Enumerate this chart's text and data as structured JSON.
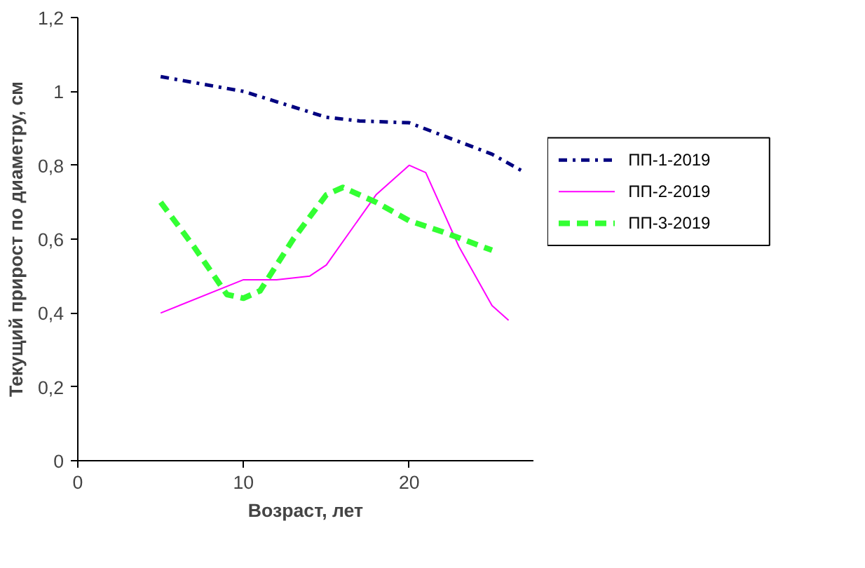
{
  "chart_data": {
    "type": "line",
    "xlabel": "Возраст, лет",
    "ylabel": "Текущий прирост по диаметру, см",
    "xlim": [
      0,
      27.5
    ],
    "xticks": [
      0,
      10,
      20
    ],
    "ylim": [
      0,
      1.2
    ],
    "yticks": [
      0,
      {
        "value": 0.2,
        "label": "0,2"
      },
      {
        "value": 0.4,
        "label": "0,4"
      },
      {
        "value": 0.6,
        "label": "0,6"
      },
      {
        "value": 0.8,
        "label": "0,8"
      },
      1,
      {
        "value": 1.2,
        "label": "1,2"
      }
    ],
    "grid": false,
    "legend": "right",
    "marker": "none",
    "series": [
      {
        "name": "ПП-1-2019",
        "color": "#000080",
        "line_style": "dashdot",
        "x": [
          5,
          10,
          15,
          17,
          20,
          25,
          27
        ],
        "values": [
          1.04,
          1.0,
          0.93,
          0.92,
          0.915,
          0.83,
          0.78
        ]
      },
      {
        "name": "ПП-2-2019",
        "color": "#ff00ff",
        "line_style": "solid",
        "x": [
          5,
          10,
          12,
          14,
          15,
          18,
          20,
          21,
          23,
          25,
          26
        ],
        "values": [
          0.4,
          0.49,
          0.49,
          0.5,
          0.53,
          0.72,
          0.8,
          0.78,
          0.58,
          0.42,
          0.38
        ]
      },
      {
        "name": "ПП-3-2019",
        "color": "#33ff33",
        "line_style": "dashed",
        "x": [
          5,
          7,
          9,
          10,
          11,
          13,
          15,
          16,
          18,
          20,
          22,
          25
        ],
        "values": [
          0.7,
          0.58,
          0.45,
          0.44,
          0.46,
          0.6,
          0.72,
          0.74,
          0.7,
          0.65,
          0.62,
          0.57
        ]
      }
    ]
  }
}
